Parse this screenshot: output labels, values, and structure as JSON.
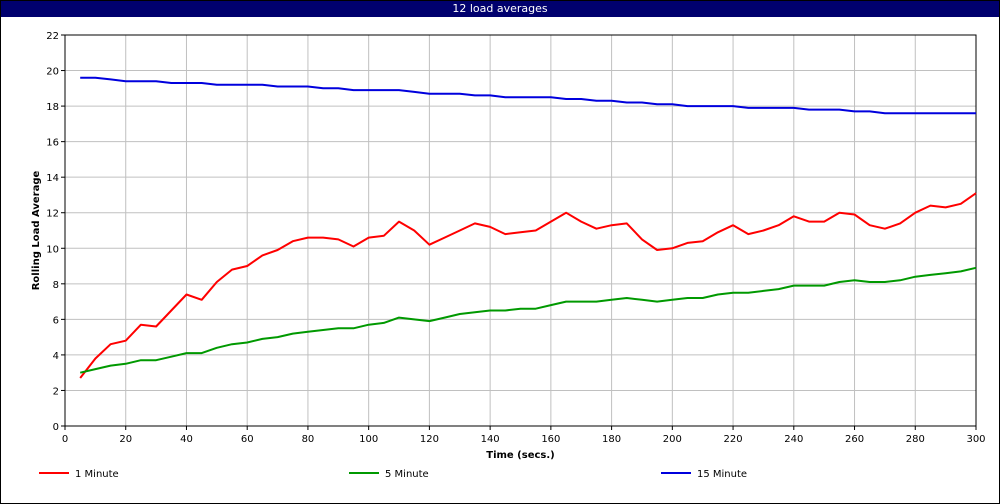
{
  "window": {
    "title": "12 load averages"
  },
  "chart_data": {
    "type": "line",
    "title": "12 load averages",
    "xlabel": "Time (secs.)",
    "ylabel": "Rolling Load Average",
    "xlim": [
      0,
      300
    ],
    "ylim": [
      0,
      22
    ],
    "xticks": [
      0,
      20,
      40,
      60,
      80,
      100,
      120,
      140,
      160,
      180,
      200,
      220,
      240,
      260,
      280,
      300
    ],
    "yticks": [
      0,
      2,
      4,
      6,
      8,
      10,
      12,
      14,
      16,
      18,
      20,
      22
    ],
    "grid": true,
    "legend_position": "bottom",
    "x": [
      5,
      10,
      15,
      20,
      25,
      30,
      35,
      40,
      45,
      50,
      55,
      60,
      65,
      70,
      75,
      80,
      85,
      90,
      95,
      100,
      105,
      110,
      115,
      120,
      125,
      130,
      135,
      140,
      145,
      150,
      155,
      160,
      165,
      170,
      175,
      180,
      185,
      190,
      195,
      200,
      205,
      210,
      215,
      220,
      225,
      230,
      235,
      240,
      245,
      250,
      255,
      260,
      265,
      270,
      275,
      280,
      285,
      290,
      295,
      300
    ],
    "series": [
      {
        "name": "1 Minute",
        "color": "#ff0000",
        "values": [
          2.7,
          3.8,
          4.6,
          4.8,
          5.7,
          5.6,
          6.5,
          7.4,
          7.1,
          8.1,
          8.8,
          9.0,
          9.6,
          9.9,
          10.4,
          10.6,
          10.6,
          10.5,
          10.1,
          10.6,
          10.7,
          11.5,
          11.0,
          10.2,
          10.6,
          11.0,
          11.4,
          11.2,
          10.8,
          10.9,
          11.0,
          11.5,
          12.0,
          11.5,
          11.1,
          11.3,
          11.4,
          10.5,
          9.9,
          10.0,
          10.3,
          10.4,
          10.9,
          11.3,
          10.8,
          11.0,
          11.3,
          11.8,
          11.5,
          11.5,
          12.0,
          11.9,
          11.3,
          11.1,
          11.4,
          12.0,
          12.4,
          12.3,
          12.5,
          13.1
        ]
      },
      {
        "name": "5 Minute",
        "color": "#009900",
        "values": [
          3.0,
          3.2,
          3.4,
          3.5,
          3.7,
          3.7,
          3.9,
          4.1,
          4.1,
          4.4,
          4.6,
          4.7,
          4.9,
          5.0,
          5.2,
          5.3,
          5.4,
          5.5,
          5.5,
          5.7,
          5.8,
          6.1,
          6.0,
          5.9,
          6.1,
          6.3,
          6.4,
          6.5,
          6.5,
          6.6,
          6.6,
          6.8,
          7.0,
          7.0,
          7.0,
          7.1,
          7.2,
          7.1,
          7.0,
          7.1,
          7.2,
          7.2,
          7.4,
          7.5,
          7.5,
          7.6,
          7.7,
          7.9,
          7.9,
          7.9,
          8.1,
          8.2,
          8.1,
          8.1,
          8.2,
          8.4,
          8.5,
          8.6,
          8.7,
          8.9
        ]
      },
      {
        "name": "15 Minute",
        "color": "#0000dd",
        "values": [
          19.6,
          19.6,
          19.5,
          19.4,
          19.4,
          19.4,
          19.3,
          19.3,
          19.3,
          19.2,
          19.2,
          19.2,
          19.2,
          19.1,
          19.1,
          19.1,
          19.0,
          19.0,
          18.9,
          18.9,
          18.9,
          18.9,
          18.8,
          18.7,
          18.7,
          18.7,
          18.6,
          18.6,
          18.5,
          18.5,
          18.5,
          18.5,
          18.4,
          18.4,
          18.3,
          18.3,
          18.2,
          18.2,
          18.1,
          18.1,
          18.0,
          18.0,
          18.0,
          18.0,
          17.9,
          17.9,
          17.9,
          17.9,
          17.8,
          17.8,
          17.8,
          17.7,
          17.7,
          17.6,
          17.6,
          17.6,
          17.6,
          17.6,
          17.6,
          17.6
        ]
      }
    ]
  }
}
